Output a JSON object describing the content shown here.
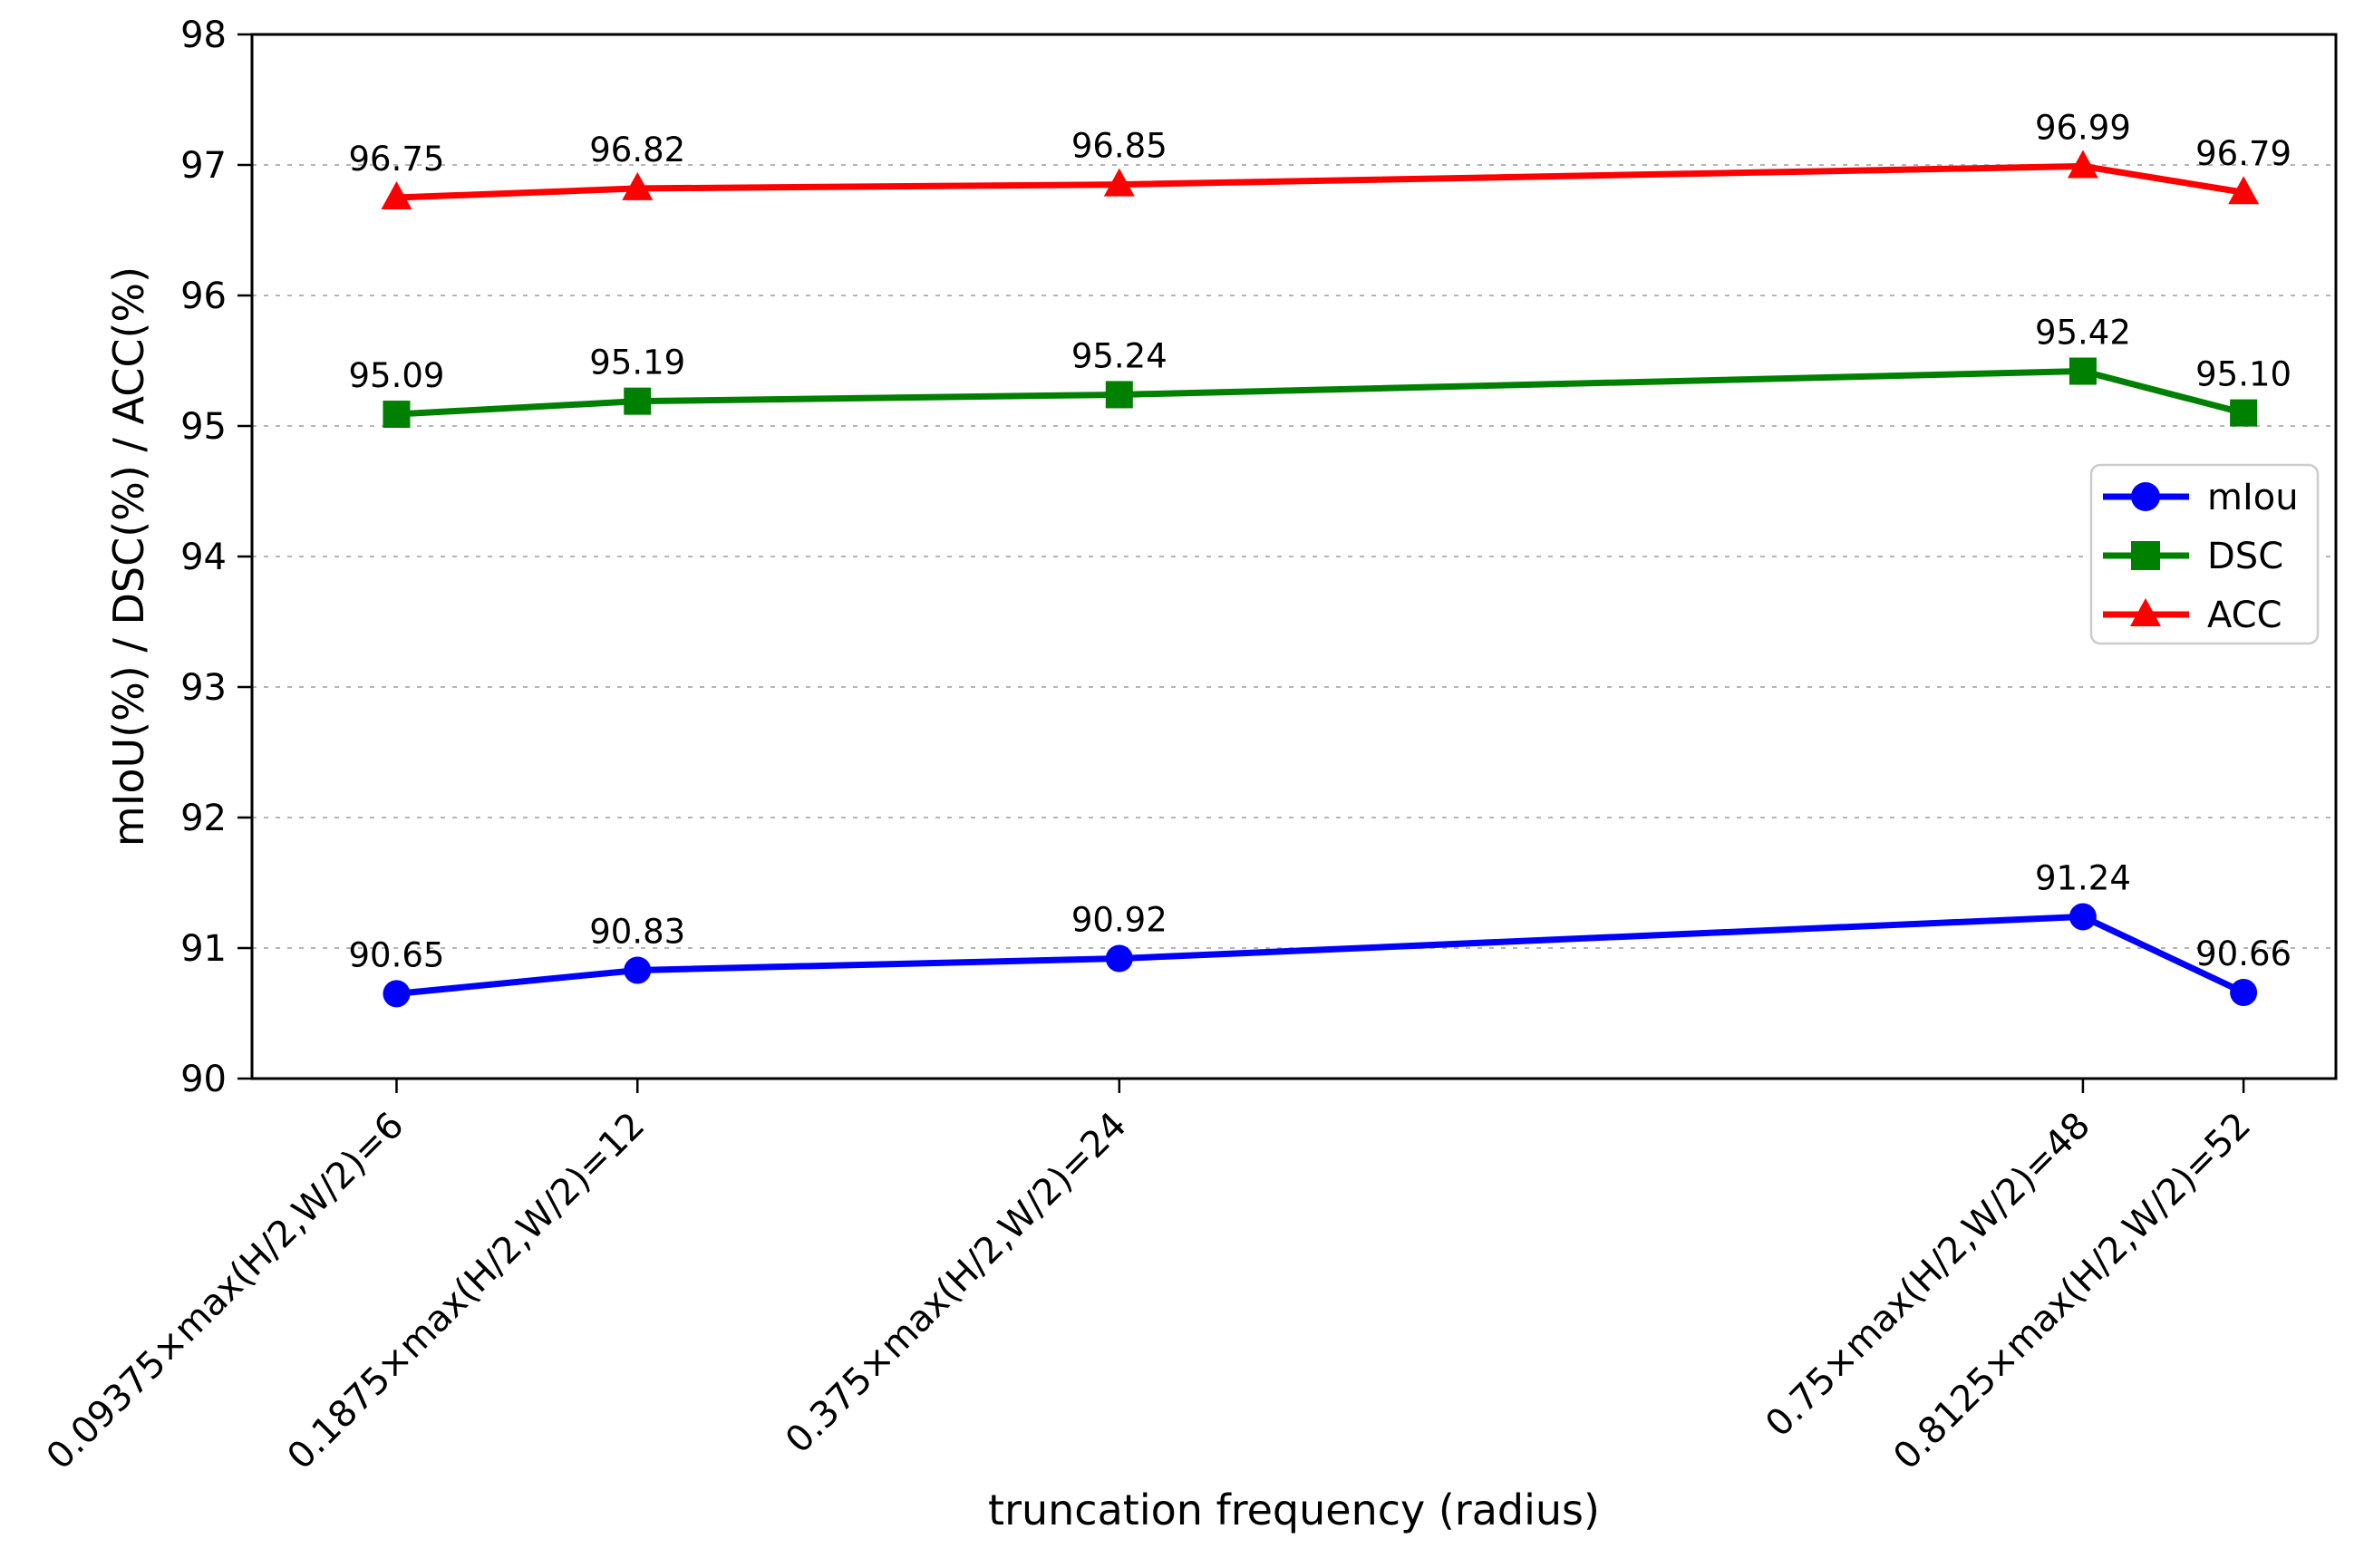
{
  "chart_data": {
    "type": "line",
    "title": "",
    "xlabel": "truncation frequency (radius)",
    "ylabel": "mIoU(%) / DSC(%) / ACC(%)",
    "x": [
      6,
      12,
      24,
      48,
      52
    ],
    "x_tick_labels": [
      "0.09375×max(H/2,W/2)=6",
      "0.1875×max(H/2,W/2)=12",
      "0.375×max(H/2,W/2)=24",
      "0.75×max(H/2,W/2)=48",
      "0.8125×max(H/2,W/2)=52"
    ],
    "xlim": [
      2.4,
      54.3
    ],
    "ylim": [
      90,
      98
    ],
    "y_ticks": [
      "90",
      "91",
      "92",
      "93",
      "94",
      "95",
      "96",
      "97",
      "98"
    ],
    "grid": {
      "horizontal": true,
      "vertical": false,
      "style": "dashed",
      "color": "#b5b5b5"
    },
    "series": [
      {
        "name": "mIou",
        "color": "#0000ff",
        "marker": "circle",
        "values": [
          90.65,
          90.83,
          90.92,
          91.24,
          90.66
        ],
        "point_labels": [
          "90.65",
          "90.83",
          "90.92",
          "91.24",
          "90.66"
        ]
      },
      {
        "name": "DSC",
        "color": "#008000",
        "marker": "square",
        "values": [
          95.09,
          95.19,
          95.24,
          95.42,
          95.1
        ],
        "point_labels": [
          "95.09",
          "95.19",
          "95.24",
          "95.42",
          "95.10"
        ]
      },
      {
        "name": "ACC",
        "color": "#ff0000",
        "marker": "triangle",
        "values": [
          96.75,
          96.82,
          96.85,
          96.99,
          96.79
        ],
        "point_labels": [
          "96.75",
          "96.82",
          "96.85",
          "96.99",
          "96.79"
        ]
      }
    ],
    "legend": {
      "position": "right",
      "entries": [
        "mIou",
        "DSC",
        "ACC"
      ]
    }
  }
}
